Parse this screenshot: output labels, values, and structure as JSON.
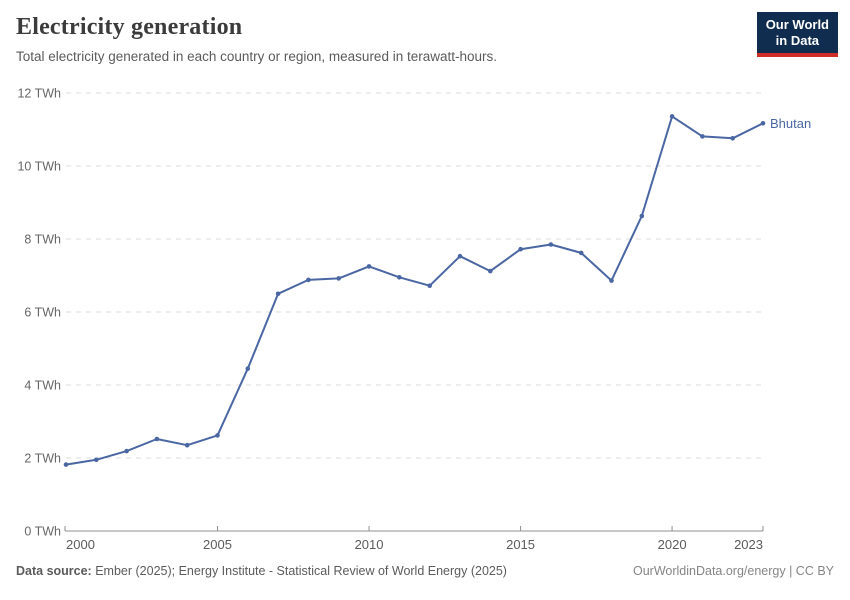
{
  "header": {
    "title": "Electricity generation",
    "subtitle": "Total electricity generated in each country or region, measured in terawatt-hours."
  },
  "logo": {
    "line1": "Our World",
    "line2": "in Data",
    "bg_color": "#102d4f",
    "bar_color": "#cf2d27"
  },
  "chart_data": {
    "type": "line",
    "title": "Electricity generation",
    "x": [
      2000,
      2001,
      2002,
      2003,
      2004,
      2005,
      2006,
      2007,
      2008,
      2009,
      2010,
      2011,
      2012,
      2013,
      2014,
      2015,
      2016,
      2017,
      2018,
      2019,
      2020,
      2021,
      2022,
      2023
    ],
    "series": [
      {
        "name": "Bhutan",
        "color": "#4a67a3",
        "values": [
          1.82,
          1.95,
          2.19,
          2.52,
          2.35,
          2.62,
          4.45,
          6.5,
          6.88,
          6.92,
          7.25,
          6.95,
          6.72,
          7.53,
          7.12,
          7.72,
          7.85,
          7.62,
          6.86,
          8.63,
          11.36,
          10.81,
          10.76,
          11.17
        ]
      }
    ],
    "ylim": [
      0,
      12
    ],
    "yticks": [
      0,
      2,
      4,
      6,
      8,
      10,
      12
    ],
    "ytick_suffix": " TWh",
    "xticks": [
      2000,
      2005,
      2010,
      2015,
      2020,
      2023
    ],
    "grid": "horizontal-dashed",
    "legend_position": "line-end-label"
  },
  "footer": {
    "source_label": "Data source:",
    "source_text": "Ember (2025); Energy Institute - Statistical Review of World Energy (2025)",
    "right_text": "OurWorldinData.org/energy | CC BY"
  },
  "colors": {
    "line": "#4a67a3",
    "grid": "#dcdcdc",
    "axis": "#8f8f8f",
    "ytick_label": "#666666",
    "xtick_label": "#5b5b5b"
  }
}
